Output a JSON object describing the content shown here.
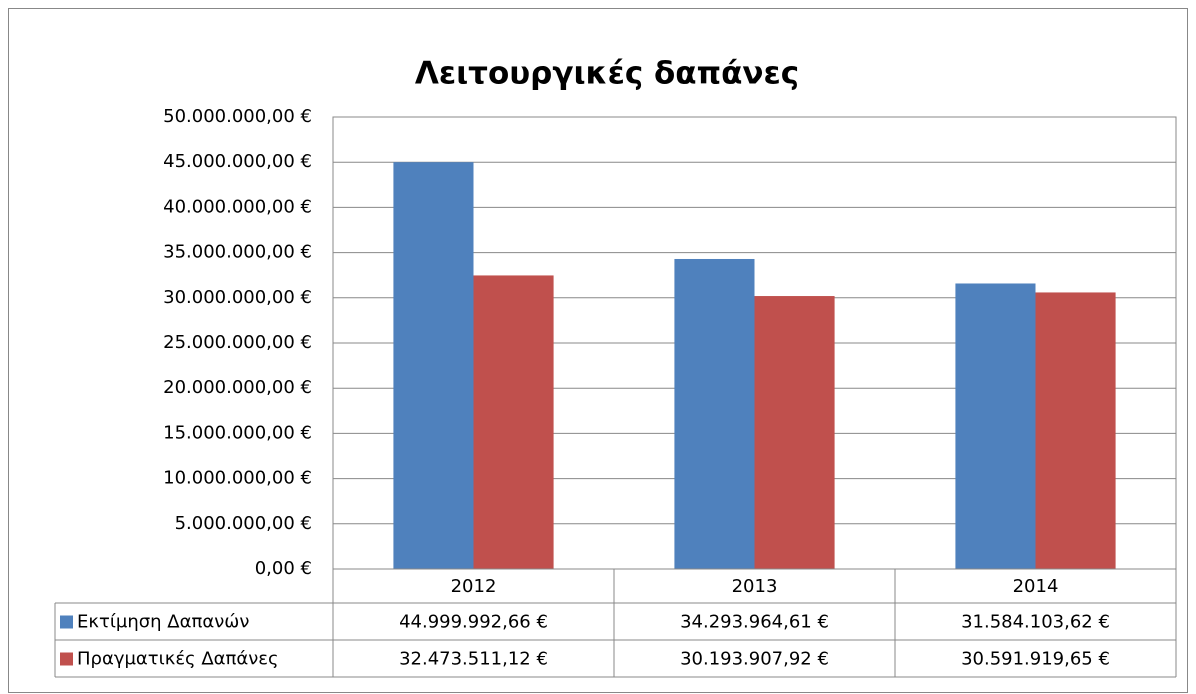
{
  "chart_data": {
    "type": "bar",
    "title": "Λειτουργικές δαπάνες",
    "categories": [
      "2012",
      "2013",
      "2014"
    ],
    "series": [
      {
        "name": "Εκτίμηση Δαπανών",
        "color": "#4f81bd",
        "values": [
          44999992.66,
          34293964.61,
          31584103.62
        ],
        "value_labels": [
          "44.999.992,66 €",
          "34.293.964,61 €",
          "31.584.103,62 €"
        ]
      },
      {
        "name": "Πραγματικές Δαπάνες",
        "color": "#c0504d",
        "values": [
          32473511.12,
          30193907.92,
          30591919.65
        ],
        "value_labels": [
          "32.473.511,12 €",
          "30.193.907,92 €",
          "30.591.919,65 €"
        ]
      }
    ],
    "ylim": [
      0,
      50000000
    ],
    "yticks": [
      {
        "value": 0,
        "label": "0,00 €"
      },
      {
        "value": 5000000,
        "label": "5.000.000,00 €"
      },
      {
        "value": 10000000,
        "label": "10.000.000,00 €"
      },
      {
        "value": 15000000,
        "label": "15.000.000,00 €"
      },
      {
        "value": 20000000,
        "label": "20.000.000,00 €"
      },
      {
        "value": 25000000,
        "label": "25.000.000,00 €"
      },
      {
        "value": 30000000,
        "label": "30.000.000,00 €"
      },
      {
        "value": 35000000,
        "label": "35.000.000,00 €"
      },
      {
        "value": 40000000,
        "label": "40.000.000,00 €"
      },
      {
        "value": 45000000,
        "label": "45.000.000,00 €"
      },
      {
        "value": 50000000,
        "label": "50.000.000,00 €"
      }
    ],
    "grid": true,
    "data_table": true
  }
}
